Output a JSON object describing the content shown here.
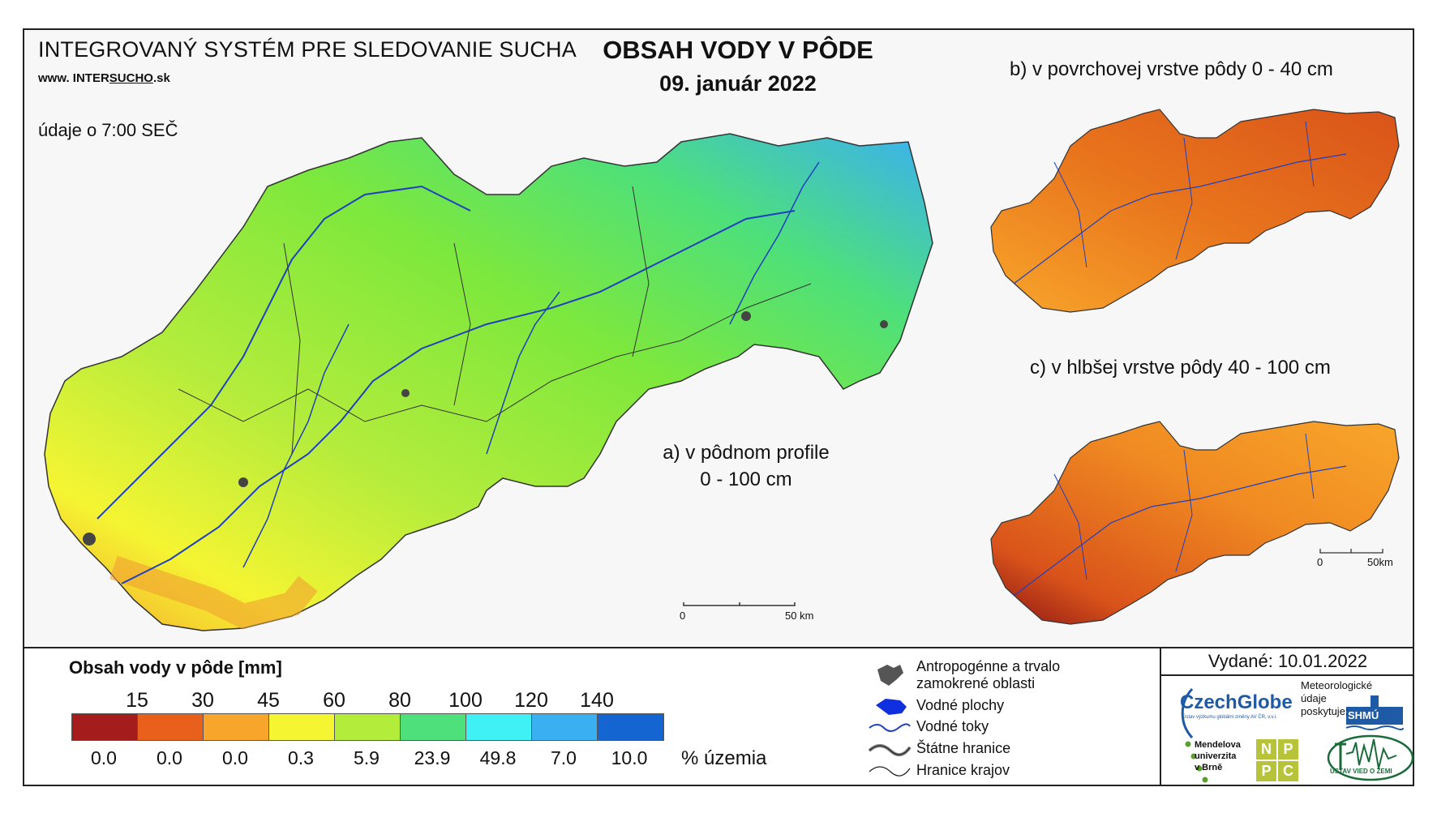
{
  "header": {
    "system_title": "INTEGROVANÝ SYSTÉM PRE SLEDOVANIE SUCHA",
    "url_prefix": "www. INTER",
    "url_mid": "SUCHO",
    "url_suffix": ".sk",
    "time_note": "údaje o 7:00 SEČ",
    "title": "OBSAH VODY V PÔDE",
    "date": "09. január 2022"
  },
  "maps": {
    "a_label_line1": "a) v pôdnom profile",
    "a_label_line2": "0 - 100 cm",
    "b_label": "b) v povrchovej vrstve pôdy 0 - 40 cm",
    "c_label": "c) v hlbšej vrstve pôdy 40 - 100 cm",
    "scale_main_zero": "0",
    "scale_main_end": "50 km",
    "scale_small_zero": "0",
    "scale_small_end": "50km"
  },
  "legend": {
    "title": "Obsah vody v pôde  [mm]",
    "breaks": [
      "15",
      "30",
      "45",
      "60",
      "80",
      "100",
      "120",
      "140"
    ],
    "classes": [
      {
        "color": "#a51c1c",
        "percent": "0.0"
      },
      {
        "color": "#e8601c",
        "percent": "0.0"
      },
      {
        "color": "#f8a62b",
        "percent": "0.0"
      },
      {
        "color": "#f5f532",
        "percent": "0.3"
      },
      {
        "color": "#b4ec3c",
        "percent": "5.9"
      },
      {
        "color": "#4ee07a",
        "percent": "23.9"
      },
      {
        "color": "#3ff0f5",
        "percent": "49.8"
      },
      {
        "color": "#3ab0f2",
        "percent": "7.0"
      },
      {
        "color": "#1464d2",
        "percent": "10.0"
      }
    ],
    "percent_unit": "% územia"
  },
  "symbols": {
    "anthro_line1": "Antropogénne a trvalo",
    "anthro_line2": "zamokrené oblasti",
    "water_bodies": "Vodné plochy",
    "rivers": "Vodné toky",
    "state_border": "Štátne hranice",
    "region_border": "Hranice krajov"
  },
  "footer": {
    "issued": "Vydané: 10.01.2022",
    "czechglobe": "CzechGlobe",
    "czechglobe_sub": "Ústav výzkumu globální změny AV ČR, v.v.i.",
    "met_line1": "Meteorologické",
    "met_line2": "údaje",
    "met_line3": "poskytuje:",
    "shmu": "SHMÚ",
    "mendel_line1": "Mendelova",
    "mendel_line2": "univerzita",
    "mendel_line3": "v Brně",
    "npc": [
      "N",
      "P",
      "P",
      "C"
    ],
    "uvz": "ÚSTAV VIED O ZEMI"
  },
  "colors": {
    "main_map_dominant": "#7ee83c",
    "small_map_dominant": "#e8741c"
  }
}
